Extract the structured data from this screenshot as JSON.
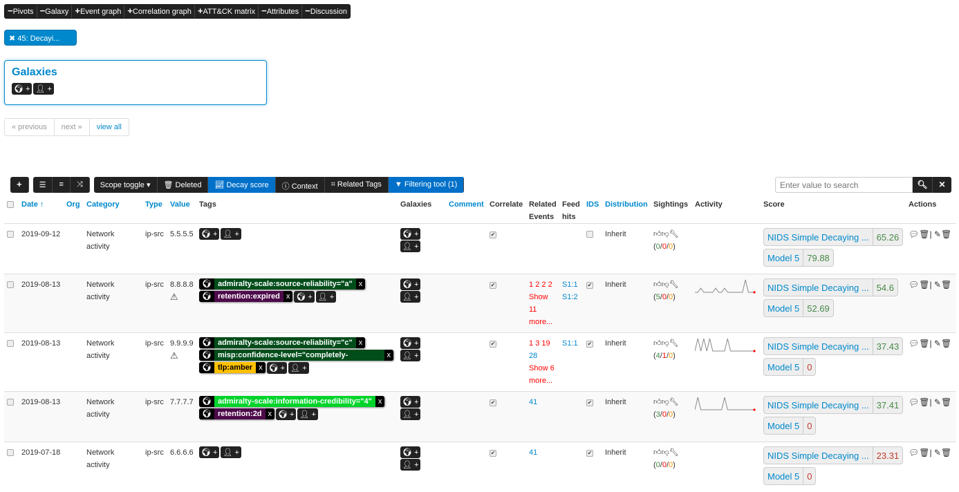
{
  "topbar": [
    {
      "sym": "−",
      "label": "Pivots"
    },
    {
      "sym": "−",
      "label": "Galaxy"
    },
    {
      "sym": "+",
      "label": "Event graph"
    },
    {
      "sym": "+",
      "label": "Correlation graph"
    },
    {
      "sym": "+",
      "label": "ATT&CK matrix"
    },
    {
      "sym": "−",
      "label": "Attributes"
    },
    {
      "sym": "−",
      "label": "Discussion"
    }
  ],
  "pivot": {
    "label": "45: Decayi..."
  },
  "galaxies": {
    "title": "Galaxies"
  },
  "pager": {
    "previous": "« previous",
    "next": "next »",
    "view_all": "view all"
  },
  "toolbar": {
    "scope_toggle": "Scope toggle ▾",
    "deleted": "Deleted",
    "decay_score": "Decay score",
    "context": "Context",
    "related_tags": "Related Tags",
    "filtering_tool": "Filtering tool (1)"
  },
  "search": {
    "placeholder": "Enter value to search"
  },
  "headers": {
    "date": "Date ↑",
    "org": "Org",
    "category": "Category",
    "type": "Type",
    "value": "Value",
    "tags": "Tags",
    "galaxies": "Galaxies",
    "comment": "Comment",
    "correlate": "Correlate",
    "related": "Related Events",
    "feed": "Feed hits",
    "ids": "IDS",
    "distribution": "Distribution",
    "sightings": "Sightings",
    "activity": "Activity",
    "score": "Score",
    "actions": "Actions"
  },
  "colors": {
    "accent": "#0088cc",
    "admiralty": "#004d1a",
    "retention": "#4d0a4a",
    "tlp_amber": "#ffc000",
    "credibility": "#00d42a"
  },
  "rows": [
    {
      "date": "2019-09-12",
      "category": "Network activity",
      "type": "ip-src",
      "value": "5.5.5.5",
      "warning": false,
      "tags": [],
      "correlate": true,
      "related": [],
      "related_blue": [],
      "related_more": "",
      "feed": [],
      "ids": false,
      "distribution": "Inherit",
      "sightings": {
        "up": "0",
        "down": "0",
        "exp": "0"
      },
      "activity": [],
      "scores": [
        {
          "model": "NIDS Simple Decaying ...",
          "score": "65.26",
          "good": true
        },
        {
          "model": "Model 5",
          "score": "79.88",
          "good": true
        }
      ]
    },
    {
      "date": "2019-08-13",
      "category": "Network activity",
      "type": "ip-src",
      "value": "8.8.8.8",
      "warning": true,
      "tags": [
        {
          "name": "admiralty-scale:source-reliability=\"a\"",
          "color": "#004d1a",
          "fg": "#fff"
        },
        {
          "name": "retention:expired",
          "color": "#4d0a4a",
          "fg": "#fff"
        }
      ],
      "correlate": true,
      "related": [
        "1",
        "2",
        "2",
        "2"
      ],
      "related_blue": [],
      "related_more": "Show 11 more...",
      "feed": [
        "S1:1",
        "S1:2"
      ],
      "ids": true,
      "distribution": "Inherit",
      "sightings": {
        "up": "5",
        "down": "0",
        "exp": "0"
      },
      "activity": [
        0,
        0,
        1,
        0,
        0,
        0,
        0,
        1,
        0,
        0,
        1,
        0,
        0,
        0,
        0,
        0,
        0,
        3,
        0,
        0,
        0
      ],
      "scores": [
        {
          "model": "NIDS Simple Decaying ...",
          "score": "54.6",
          "good": true
        },
        {
          "model": "Model 5",
          "score": "52.69",
          "good": true
        }
      ]
    },
    {
      "date": "2019-08-13",
      "category": "Network activity",
      "type": "ip-src",
      "value": "9.9.9.9",
      "warning": true,
      "tags": [
        {
          "name": "admiralty-scale:source-reliability=\"c\"",
          "color": "#004d1a",
          "fg": "#fff"
        },
        {
          "name": "misp:confidence-level=\"completely-confident\"",
          "color": "#004d1a",
          "fg": "#fff"
        },
        {
          "name": "tlp:amber",
          "color": "#ffc000",
          "fg": "#000"
        }
      ],
      "correlate": true,
      "related": [
        "1",
        "3",
        "19"
      ],
      "related_blue": [
        "28"
      ],
      "related_more": "Show 6 more...",
      "feed": [
        "S1:1"
      ],
      "ids": true,
      "distribution": "Inherit",
      "sightings": {
        "up": "4",
        "down": "1",
        "exp": "0"
      },
      "activity": [
        0,
        3,
        0,
        3,
        0,
        3,
        0,
        0,
        0,
        0,
        0,
        3,
        0,
        0,
        0,
        0,
        0,
        0,
        0,
        0,
        0
      ],
      "scores": [
        {
          "model": "NIDS Simple Decaying ...",
          "score": "37.43",
          "good": true
        },
        {
          "model": "Model 5",
          "score": "0",
          "good": false
        }
      ]
    },
    {
      "date": "2019-08-13",
      "category": "Network activity",
      "type": "ip-src",
      "value": "7.7.7.7",
      "warning": false,
      "tags": [
        {
          "name": "admiralty-scale:information-credibility=\"4\"",
          "color": "#00d42a",
          "fg": "#fff"
        },
        {
          "name": "retention:2d",
          "color": "#4d0a4a",
          "fg": "#fff"
        }
      ],
      "correlate": true,
      "related": [],
      "related_blue": [
        "41"
      ],
      "related_more": "",
      "feed": [],
      "ids": true,
      "distribution": "Inherit",
      "sightings": {
        "up": "3",
        "down": "0",
        "exp": "0"
      },
      "activity": [
        0,
        3,
        0,
        0,
        0,
        0,
        0,
        0,
        0,
        0,
        3,
        0,
        0,
        0,
        0,
        0,
        0,
        0,
        0,
        0,
        0
      ],
      "scores": [
        {
          "model": "NIDS Simple Decaying ...",
          "score": "37.41",
          "good": true
        },
        {
          "model": "Model 5",
          "score": "0",
          "good": false
        }
      ]
    },
    {
      "date": "2019-07-18",
      "category": "Network activity",
      "type": "ip-src",
      "value": "6.6.6.6",
      "warning": false,
      "tags": [],
      "correlate": true,
      "related": [],
      "related_blue": [
        "41"
      ],
      "related_more": "",
      "feed": [],
      "ids": true,
      "distribution": "Inherit",
      "sightings": {
        "up": "0",
        "down": "0",
        "exp": "0"
      },
      "activity": [],
      "scores": [
        {
          "model": "NIDS Simple Decaying ...",
          "score": "23.31",
          "good": false
        },
        {
          "model": "Model 5",
          "score": "0",
          "good": false
        }
      ]
    }
  ]
}
